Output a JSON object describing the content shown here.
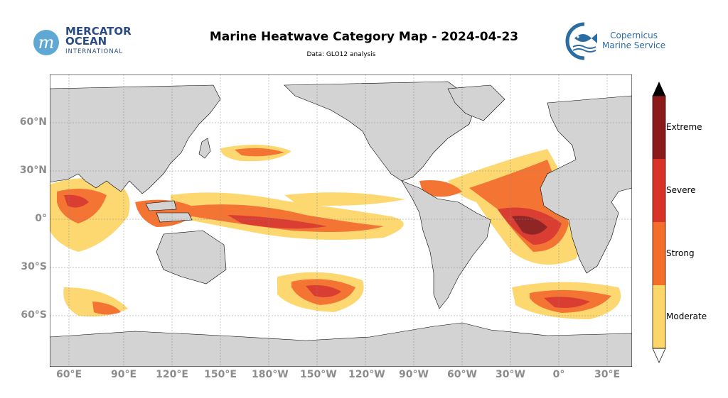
{
  "header": {
    "title": "Marine Heatwave Category Map - 2024-04-23",
    "subtitle": "Data: GLO12 analysis"
  },
  "logos": {
    "mercator": {
      "line1": "MERCATOR",
      "line2": "OCEAN",
      "line3": "INTERNATIONAL",
      "color": "#2b4b85",
      "mark_color": "#5fa8d3"
    },
    "copernicus": {
      "line1": "Copernicus",
      "line2": "Marine Service",
      "color": "#2b6ca3"
    }
  },
  "map": {
    "projection": "plate carree, centered 180",
    "lon_ticks": [
      "60°E",
      "90°E",
      "120°E",
      "150°E",
      "180°W",
      "150°W",
      "120°W",
      "90°W",
      "60°W",
      "30°W",
      "0°",
      "30°E"
    ],
    "lat_ticks": [
      "60°N",
      "30°N",
      "0°",
      "30°S",
      "60°S"
    ],
    "land_color": "#d3d3d3",
    "ocean_color": "#ffffff",
    "gridlines": true
  },
  "legend": {
    "categories": [
      "Moderate",
      "Strong",
      "Severe",
      "Extreme"
    ],
    "colors": [
      "#fdd66a",
      "#f46d2a",
      "#d93328",
      "#8b1a1a"
    ]
  }
}
